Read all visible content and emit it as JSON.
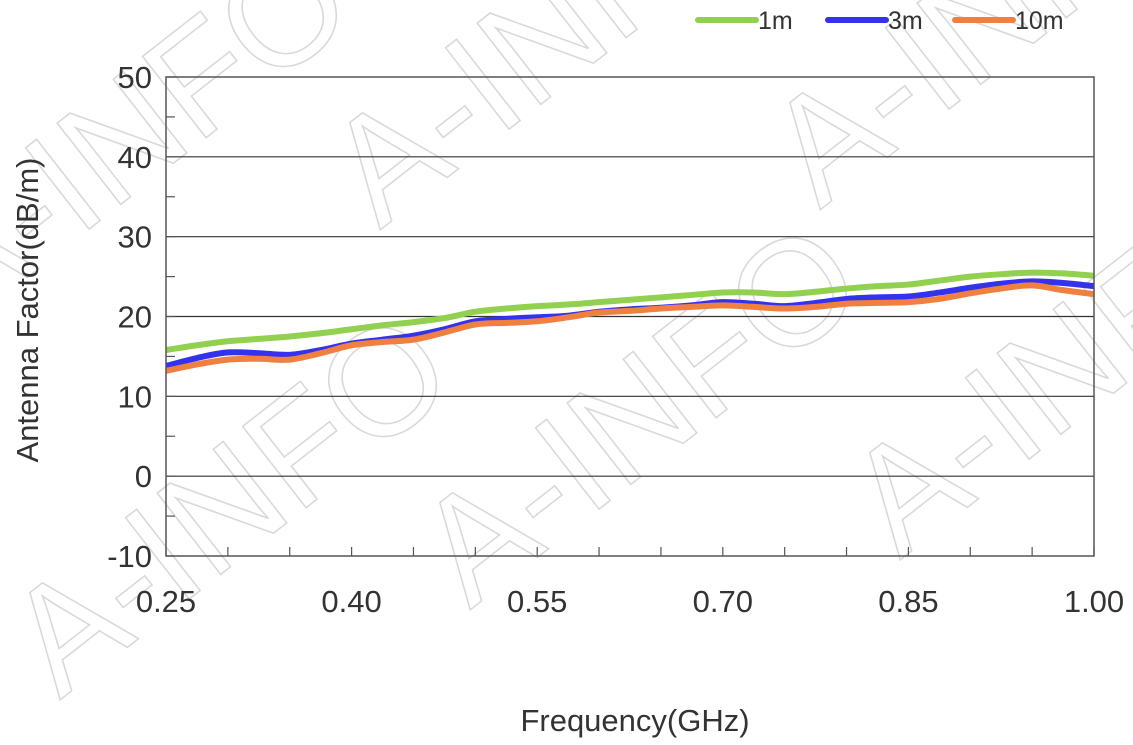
{
  "watermark": "A-INFO",
  "chart_data": {
    "type": "line",
    "xlabel": "Frequency(GHz)",
    "ylabel": "Antenna Factor(dB/m)",
    "xlim": [
      0.25,
      1.0
    ],
    "ylim": [
      -10,
      50
    ],
    "x_ticks": [
      "0.25",
      "0.40",
      "0.55",
      "0.70",
      "0.85",
      "1.00"
    ],
    "y_ticks": [
      "-10",
      "0",
      "10",
      "20",
      "30",
      "40",
      "50"
    ],
    "grid": "horizontal",
    "legend_position": "top-right",
    "x": [
      0.25,
      0.275,
      0.3,
      0.325,
      0.35,
      0.375,
      0.4,
      0.425,
      0.45,
      0.475,
      0.5,
      0.525,
      0.55,
      0.575,
      0.6,
      0.625,
      0.65,
      0.675,
      0.7,
      0.725,
      0.75,
      0.775,
      0.8,
      0.825,
      0.85,
      0.875,
      0.9,
      0.925,
      0.95,
      0.975,
      1.0
    ],
    "series": [
      {
        "name": "1m",
        "color": "#92d050",
        "values": [
          15.8,
          16.4,
          16.9,
          17.2,
          17.5,
          17.9,
          18.4,
          18.9,
          19.3,
          19.8,
          20.6,
          21.0,
          21.3,
          21.5,
          21.8,
          22.1,
          22.4,
          22.7,
          23.0,
          23.0,
          22.8,
          23.1,
          23.5,
          23.8,
          24.0,
          24.5,
          25.0,
          25.3,
          25.5,
          25.4,
          25.1
        ]
      },
      {
        "name": "3m",
        "color": "#3333ee",
        "values": [
          13.8,
          14.8,
          15.5,
          15.4,
          15.2,
          15.8,
          16.6,
          17.1,
          17.6,
          18.4,
          19.4,
          19.7,
          19.9,
          20.1,
          20.6,
          20.9,
          21.1,
          21.4,
          21.8,
          21.6,
          21.3,
          21.7,
          22.2,
          22.4,
          22.5,
          23.0,
          23.6,
          24.1,
          24.4,
          24.2,
          23.8
        ]
      },
      {
        "name": "10m",
        "color": "#f08040",
        "values": [
          13.2,
          14.0,
          14.6,
          14.7,
          14.6,
          15.4,
          16.4,
          16.8,
          17.1,
          18.0,
          19.0,
          19.2,
          19.4,
          19.9,
          20.5,
          20.7,
          21.0,
          21.2,
          21.4,
          21.2,
          21.0,
          21.2,
          21.6,
          21.7,
          21.8,
          22.2,
          22.9,
          23.5,
          23.9,
          23.3,
          22.8
        ]
      }
    ]
  }
}
